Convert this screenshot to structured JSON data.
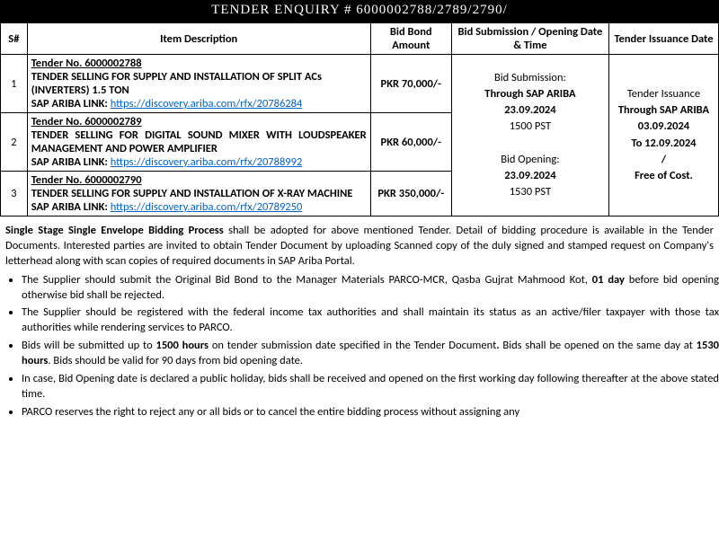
{
  "header": {
    "title": "TENDER ENQUIRY # 6000002788/2789/2790/"
  },
  "table": {
    "columns": {
      "sn": "S#",
      "desc": "Item Description",
      "bond": "Bid Bond Amount",
      "submission": "Bid Submission / Opening Date & Time",
      "issuance": "Tender Issuance Date"
    },
    "rows": [
      {
        "sn": "1",
        "tender_no": "Tender No. 6000002788",
        "tender_desc": "TENDER SELLING FOR SUPPLY AND INSTALLATION OF SPLIT ACs (INVERTERS) 1.5 TON",
        "link_label": "SAP ARIBA LINK:",
        "link_url": "https://discovery.ariba.com/rfx/20786284",
        "bond": "PKR 70,000/-"
      },
      {
        "sn": "2",
        "tender_no": "Tender No. 6000002789",
        "tender_desc": "TENDER SELLING FOR DIGITAL SOUND MIXER WITH LOUDSPEAKER MANAGEMENT AND POWER AMPLIFIER",
        "link_label": "SAP ARIBA LINK:",
        "link_url": "https://discovery.ariba.com/rfx/20788992",
        "bond": "PKR 60,000/-"
      },
      {
        "sn": "3",
        "tender_no": "Tender No. 6000002790",
        "tender_desc": "TENDER SELLING FOR SUPPLY AND INSTALLATION OF X-RAY MACHINE",
        "link_label": "SAP ARIBA LINK:",
        "link_url": "https://discovery.ariba.com/rfx/20789250",
        "bond": "PKR 350,000/-"
      }
    ],
    "submission": {
      "l1": "Bid Submission:",
      "l2": "Through SAP ARIBA",
      "l3": "23.09.2024",
      "l4": "1500 PST",
      "l5": "Bid Opening:",
      "l6": "23.09.2024",
      "l7": "1530 PST"
    },
    "issuance": {
      "l1": "Tender Issuance",
      "l2": "Through SAP ARIBA",
      "l3": "03.09.2024",
      "l4": "To 12.09.2024",
      "l5": "/",
      "l6": "Free of Cost."
    }
  },
  "intro": {
    "lead_bold": "Single Stage Single Envelope Bidding Process",
    "lead_rest": " shall be adopted for above mentioned Tender. Detail of bidding procedure is available in the Tender Documents. Interested parties are invited to obtain Tender Document by uploading Scanned copy of the duly signed and stamped request on Company's letterhead along with scan copies of required documents in SAP Ariba Portal."
  },
  "bullets": [
    {
      "pre": "The Supplier should submit the Original Bid Bond to the Manager Materials PARCO-MCR, Qasba Gujrat Mahmood Kot, ",
      "bold1": "01 day",
      "post1": " before bid opening otherwise bid shall be rejected."
    },
    {
      "pre": "The Supplier should be registered with the federal income tax authorities and shall maintain its status as an active/filer taxpayer with those tax authorities while rendering services to PARCO."
    },
    {
      "pre": "Bids will be submitted up to ",
      "bold1": "1500 hours",
      "mid1": " on tender submission date specified in the Tender Document",
      "bold2": ".",
      "mid2": " Bids shall be opened on the same day at ",
      "bold3": "1530 hours",
      "post3": ". Bids should be valid for 90 days from bid opening date."
    },
    {
      "pre": "In case, Bid Opening date is declared a public holiday, bids shall be received and opened on the first working day following thereafter at the above stated time."
    },
    {
      "pre": "PARCO reserves the right to reject any or all bids or to cancel the entire bidding process without assigning any"
    }
  ]
}
